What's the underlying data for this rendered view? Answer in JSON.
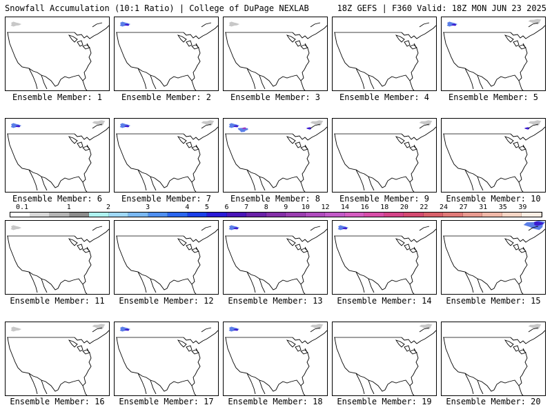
{
  "header": {
    "left_title": "Snowfall Accumulation (10:1 Ratio) | College of DuPage NEXLAB",
    "right_title": "18Z GEFS | F360 Valid: 18Z MON JUN 23 2025"
  },
  "panels": [
    {
      "caption": "Ensemble Member: 1",
      "snow": [
        "nw-trace"
      ]
    },
    {
      "caption": "Ensemble Member: 2",
      "snow": [
        "nw-light"
      ]
    },
    {
      "caption": "Ensemble Member: 3",
      "snow": [
        "nw-trace"
      ]
    },
    {
      "caption": "Ensemble Member: 4",
      "snow": []
    },
    {
      "caption": "Ensemble Member: 5",
      "snow": [
        "nw-light",
        "ne-trace"
      ]
    },
    {
      "caption": "Ensemble Member: 6",
      "snow": [
        "nw-light",
        "ne-trace"
      ]
    },
    {
      "caption": "Ensemble Member: 7",
      "snow": [
        "nw-light",
        "ne-trace"
      ]
    },
    {
      "caption": "Ensemble Member: 8",
      "snow": [
        "nw-heavy",
        "ne-light"
      ]
    },
    {
      "caption": "Ensemble Member: 9",
      "snow": [
        "ne-trace"
      ]
    },
    {
      "caption": "Ensemble Member: 10",
      "snow": [
        "ne-light"
      ]
    },
    {
      "caption": "Ensemble Member: 11",
      "snow": [
        "nw-trace"
      ]
    },
    {
      "caption": "Ensemble Member: 12",
      "snow": []
    },
    {
      "caption": "Ensemble Member: 13",
      "snow": [
        "nw-light"
      ]
    },
    {
      "caption": "Ensemble Member: 14",
      "snow": [
        "nw-light"
      ]
    },
    {
      "caption": "Ensemble Member: 15",
      "snow": [
        "ne-heavy"
      ]
    },
    {
      "caption": "Ensemble Member: 16",
      "snow": [
        "nw-trace",
        "ne-trace"
      ]
    },
    {
      "caption": "Ensemble Member: 17",
      "snow": [
        "nw-light"
      ]
    },
    {
      "caption": "Ensemble Member: 18",
      "snow": [
        "nw-light",
        "ne-trace"
      ]
    },
    {
      "caption": "Ensemble Member: 19",
      "snow": [
        "ne-trace"
      ]
    },
    {
      "caption": "Ensemble Member: 20",
      "snow": [
        "ne-trace"
      ]
    }
  ],
  "colorbar": {
    "labels": [
      "0.1",
      "1",
      "2",
      "3",
      "4",
      "5",
      "6",
      "7",
      "8",
      "9",
      "10",
      "12",
      "14",
      "16",
      "18",
      "20",
      "22",
      "24",
      "27",
      "31",
      "35",
      "39"
    ],
    "colors": [
      "#ffffff",
      "#d8d8d8",
      "#b4b4b4",
      "#8c8c8c",
      "#aef2f0",
      "#9fd8f7",
      "#7ab8f2",
      "#4f8ff0",
      "#2b66ee",
      "#1b3fe8",
      "#2a1bd6",
      "#4a16b8",
      "#6a22a8",
      "#8430a8",
      "#9a3eb0",
      "#b04cbe",
      "#c25ac8",
      "#d45cc0",
      "#d84ea8",
      "#d44488",
      "#d44a70",
      "#d8606a",
      "#e07a78",
      "#e89a90",
      "#f0b8a8",
      "#f6d6c6",
      "#fbeee4"
    ]
  },
  "snow_colors": {
    "trace": "#c8c8c8",
    "light": "#5b7fe8",
    "heavy": "#3b1bd0",
    "accent": "#9c3cc0"
  }
}
